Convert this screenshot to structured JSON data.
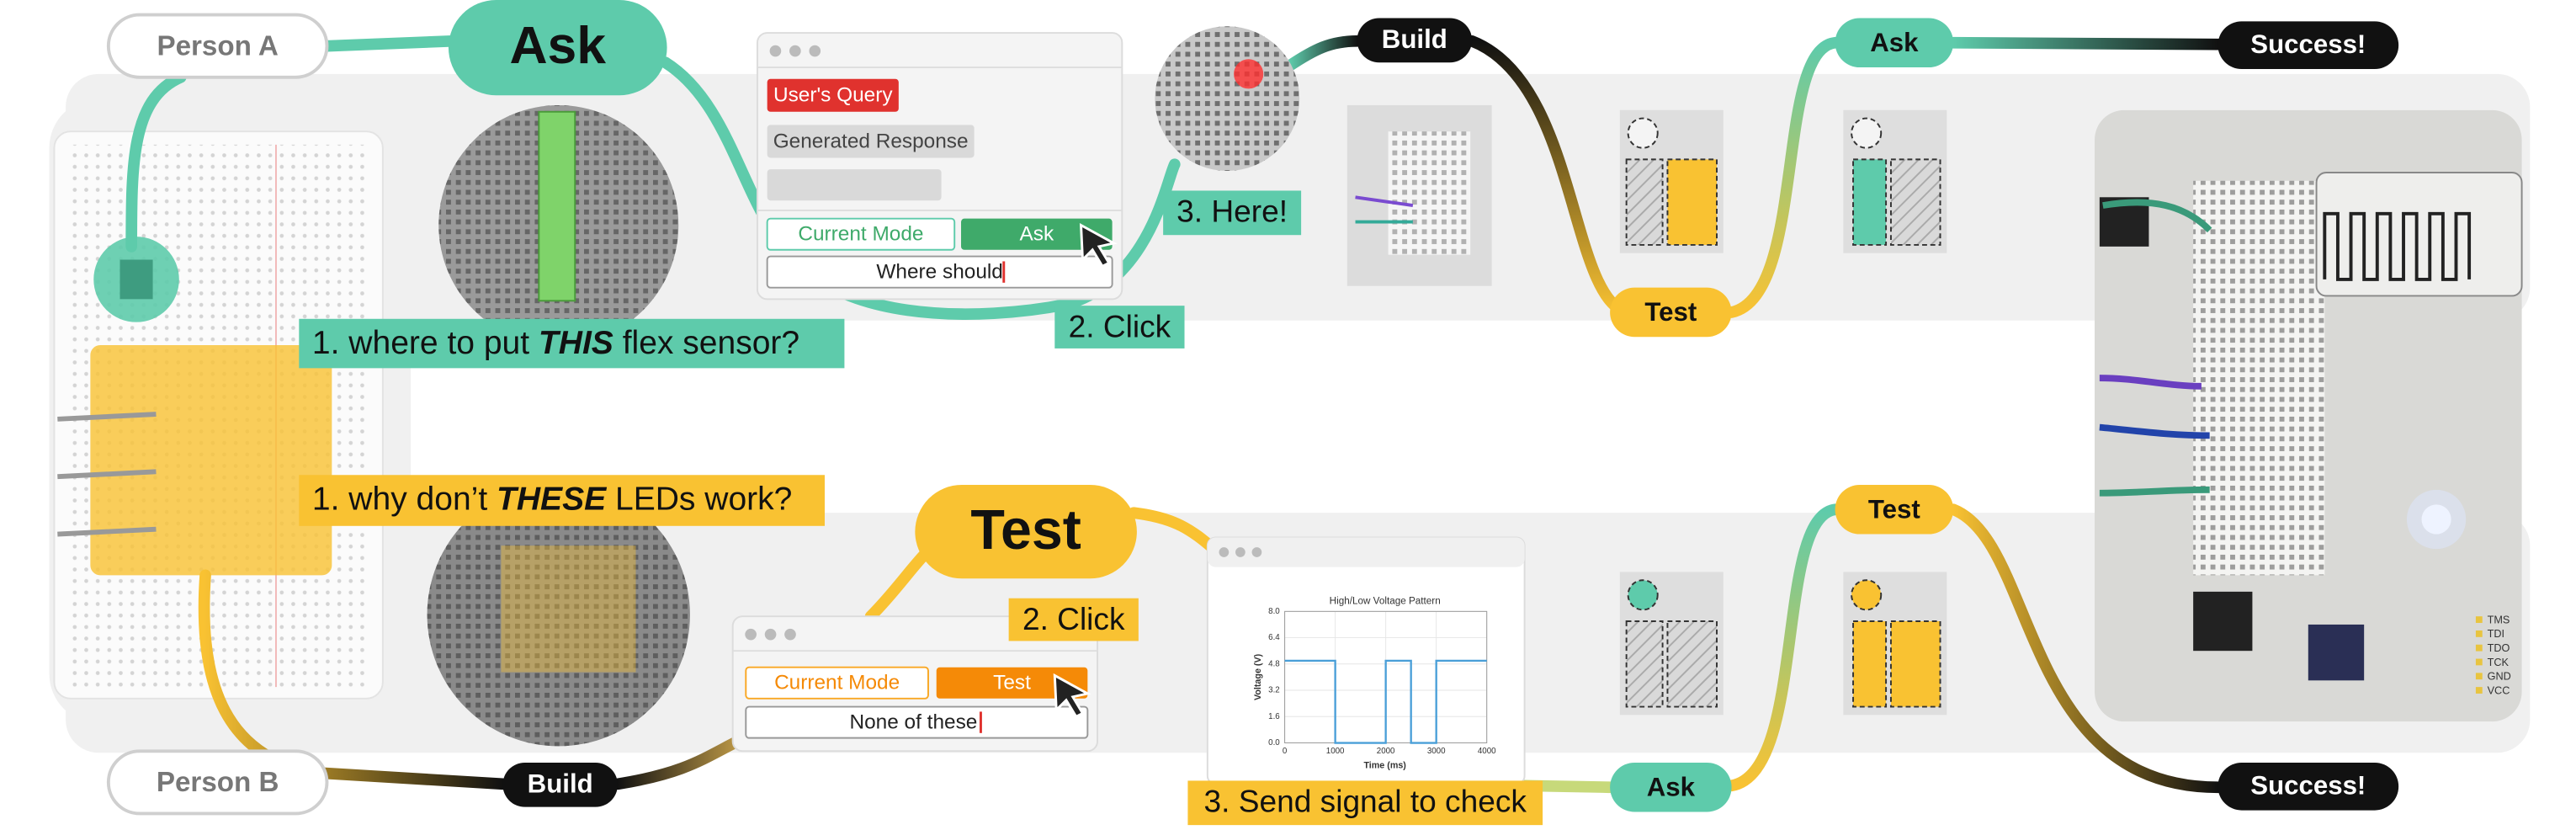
{
  "people": {
    "a": "Person A",
    "b": "Person B"
  },
  "top_flow": {
    "ask_bubble": "Ask",
    "question": {
      "before": "1. where to put ",
      "emphasis": "THIS",
      "after": " flex sensor?"
    },
    "ui": {
      "query_tag": "User's Query",
      "response_tag": "Generated Response",
      "mode_label": "Current Mode",
      "mode_button": "Ask",
      "input": "Where should"
    },
    "click_label": "2. Click",
    "here_label": "3. Here!",
    "steps": [
      "Build",
      "Test",
      "Ask"
    ],
    "result": "Success!"
  },
  "bottom_flow": {
    "test_bubble": "Test",
    "question": {
      "before": "1. why don’t ",
      "emphasis": "THESE",
      "after": " LEDs work?"
    },
    "ui": {
      "mode_label": "Current Mode",
      "mode_button": "Test",
      "input": "None of these"
    },
    "click_label": "2. Click",
    "chart": {
      "title": "High/Low Voltage Pattern",
      "x_label": "Time (ms)",
      "y_label": "Voltage (V)",
      "x": [
        0,
        1000,
        1000,
        2000,
        2000,
        2500,
        2500,
        3000,
        3000,
        4000
      ],
      "values": [
        5,
        5,
        0,
        0,
        5,
        5,
        0,
        0,
        5,
        5
      ],
      "xlim": [
        0,
        4000
      ],
      "xticks": [
        0,
        1000,
        2000,
        3000,
        4000
      ],
      "ylim": [
        0,
        8
      ],
      "yticks": [
        {
          "value": 0,
          "label": "0.0"
        },
        1.6,
        3.2,
        4.8,
        6.4,
        {
          "value": 8,
          "label": "8.0"
        }
      ],
      "color": "#4a9fd8"
    },
    "check_label": "3. Send signal to check",
    "steps": [
      "Build",
      "Ask",
      "Test"
    ],
    "result": "Success!"
  },
  "board_pins": [
    "TMS",
    "TDI",
    "TDO",
    "TCK",
    "GND",
    "VCC"
  ]
}
